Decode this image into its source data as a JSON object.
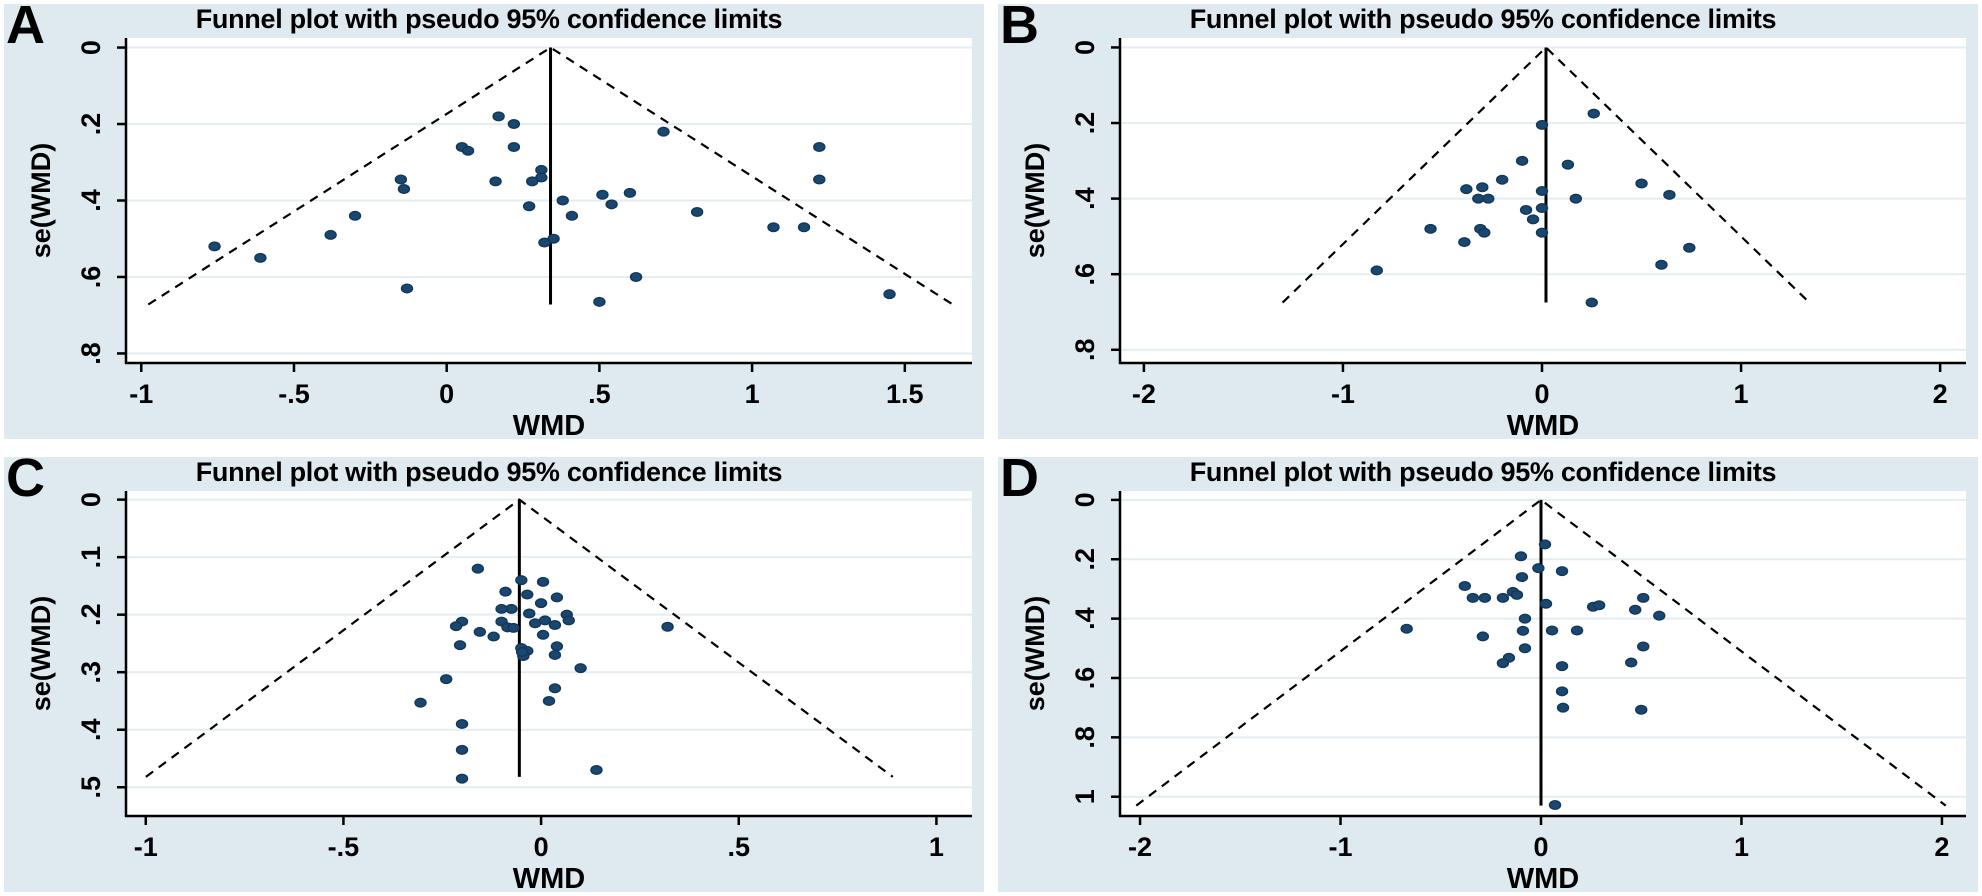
{
  "figure": {
    "description": "Four Stata-style funnel plots arranged in a 2x2 grid, labelled A-D",
    "panel_title": "Funnel plot with pseudo 95% confidence limits"
  },
  "style": {
    "panel_bg": "#dfe9f0",
    "plot_bg": "#ffffff",
    "grid": "#e4edf1",
    "axis": "#000000",
    "line": "#000000",
    "marker": "#1a476f",
    "marker_edge": "#133758"
  },
  "chart_data": [
    {
      "type": "scatter",
      "subtype": "funnel",
      "panel_label": "A",
      "title": "Funnel plot with pseudo 95% confidence limits",
      "xlabel": "WMD",
      "ylabel": "se(WMD)",
      "x_ticks": [
        -1,
        -0.5,
        0,
        0.5,
        1,
        1.5
      ],
      "x_tick_labels": [
        "-1",
        "-.5",
        "0",
        ".5",
        "1",
        "1.5"
      ],
      "y_ticks": [
        0,
        0.2,
        0.4,
        0.6,
        0.8
      ],
      "y_tick_labels": [
        "0",
        ".2",
        ".4",
        ".6",
        ".8"
      ],
      "xlim": [
        -1.05,
        1.72
      ],
      "ylim": [
        -0.025,
        0.825
      ],
      "grid": true,
      "pooled_estimate": 0.34,
      "base_se": 0.672,
      "points": [
        [
          0.17,
          0.18
        ],
        [
          0.22,
          0.2
        ],
        [
          0.22,
          0.26
        ],
        [
          0.05,
          0.26
        ],
        [
          0.07,
          0.27
        ],
        [
          0.31,
          0.32
        ],
        [
          0.31,
          0.34
        ],
        [
          0.28,
          0.35
        ],
        [
          0.16,
          0.35
        ],
        [
          -0.15,
          0.345
        ],
        [
          -0.14,
          0.37
        ],
        [
          0.71,
          0.22
        ],
        [
          1.22,
          0.26
        ],
        [
          1.22,
          0.345
        ],
        [
          0.51,
          0.385
        ],
        [
          0.6,
          0.38
        ],
        [
          0.38,
          0.4
        ],
        [
          0.54,
          0.41
        ],
        [
          0.27,
          0.415
        ],
        [
          0.41,
          0.44
        ],
        [
          0.82,
          0.43
        ],
        [
          -0.3,
          0.44
        ],
        [
          1.07,
          0.47
        ],
        [
          1.17,
          0.47
        ],
        [
          -0.38,
          0.49
        ],
        [
          0.35,
          0.5
        ],
        [
          0.32,
          0.51
        ],
        [
          -0.76,
          0.52
        ],
        [
          -0.61,
          0.55
        ],
        [
          0.62,
          0.6
        ],
        [
          -0.13,
          0.63
        ],
        [
          1.45,
          0.645
        ],
        [
          0.5,
          0.665
        ]
      ]
    },
    {
      "type": "scatter",
      "subtype": "funnel",
      "panel_label": "B",
      "title": "Funnel plot with pseudo 95% confidence limits",
      "xlabel": "WMD",
      "ylabel": "se(WMD)",
      "x_ticks": [
        -2,
        -1,
        0,
        1,
        2
      ],
      "x_tick_labels": [
        "-2",
        "-1",
        "0",
        "1",
        "2"
      ],
      "y_ticks": [
        0,
        0.2,
        0.4,
        0.6,
        0.8
      ],
      "y_tick_labels": [
        "0",
        ".2",
        ".4",
        ".6",
        ".8"
      ],
      "xlim": [
        -2.12,
        2.13
      ],
      "ylim": [
        -0.025,
        0.835
      ],
      "grid": true,
      "pooled_estimate": 0.02,
      "base_se": 0.675,
      "points": [
        [
          0.26,
          0.175
        ],
        [
          0.0,
          0.205
        ],
        [
          -0.1,
          0.3
        ],
        [
          0.13,
          0.31
        ],
        [
          -0.2,
          0.35
        ],
        [
          -0.38,
          0.375
        ],
        [
          -0.3,
          0.37
        ],
        [
          -0.32,
          0.4
        ],
        [
          -0.27,
          0.4
        ],
        [
          0.0,
          0.38
        ],
        [
          0.17,
          0.4
        ],
        [
          0.5,
          0.36
        ],
        [
          0.64,
          0.39
        ],
        [
          -0.08,
          0.43
        ],
        [
          0.0,
          0.425
        ],
        [
          -0.045,
          0.455
        ],
        [
          0.0,
          0.49
        ],
        [
          -0.56,
          0.48
        ],
        [
          -0.31,
          0.48
        ],
        [
          -0.29,
          0.49
        ],
        [
          -0.39,
          0.515
        ],
        [
          -0.83,
          0.59
        ],
        [
          0.74,
          0.53
        ],
        [
          0.6,
          0.575
        ],
        [
          0.25,
          0.675
        ]
      ]
    },
    {
      "type": "scatter",
      "subtype": "funnel",
      "panel_label": "C",
      "title": "Funnel plot with pseudo 95% confidence limits",
      "xlabel": "WMD",
      "ylabel": "se(WMD)",
      "x_ticks": [
        -1,
        -0.5,
        0,
        0.5,
        1
      ],
      "x_tick_labels": [
        "-1",
        "-.5",
        "0",
        ".5",
        "1"
      ],
      "y_ticks": [
        0,
        0.1,
        0.2,
        0.3,
        0.4,
        0.5
      ],
      "y_tick_labels": [
        "0",
        ".1",
        ".2",
        ".3",
        ".4",
        ".5"
      ],
      "xlim": [
        -1.05,
        1.09
      ],
      "ylim": [
        -0.015,
        0.55
      ],
      "grid": true,
      "pooled_estimate": -0.055,
      "base_se": 0.482,
      "points": [
        [
          -0.16,
          0.12
        ],
        [
          -0.05,
          0.14
        ],
        [
          0.005,
          0.143
        ],
        [
          -0.09,
          0.16
        ],
        [
          -0.035,
          0.165
        ],
        [
          0.04,
          0.17
        ],
        [
          0.0,
          0.18
        ],
        [
          -0.075,
          0.19
        ],
        [
          -0.1,
          0.19
        ],
        [
          -0.03,
          0.198
        ],
        [
          0.065,
          0.2
        ],
        [
          -0.2,
          0.212
        ],
        [
          -0.215,
          0.22
        ],
        [
          -0.1,
          0.212
        ],
        [
          -0.085,
          0.222
        ],
        [
          -0.07,
          0.223
        ],
        [
          -0.015,
          0.215
        ],
        [
          0.01,
          0.21
        ],
        [
          0.035,
          0.218
        ],
        [
          0.005,
          0.235
        ],
        [
          -0.155,
          0.23
        ],
        [
          -0.12,
          0.238
        ],
        [
          -0.205,
          0.253
        ],
        [
          -0.05,
          0.258
        ],
        [
          -0.035,
          0.263
        ],
        [
          0.04,
          0.255
        ],
        [
          0.035,
          0.27
        ],
        [
          0.07,
          0.21
        ],
        [
          0.32,
          0.221
        ],
        [
          -0.24,
          0.312
        ],
        [
          0.035,
          0.328
        ],
        [
          -0.305,
          0.353
        ],
        [
          0.02,
          0.35
        ],
        [
          0.1,
          0.293
        ],
        [
          -0.045,
          0.272
        ],
        [
          -0.048,
          0.265
        ],
        [
          -0.2,
          0.39
        ],
        [
          -0.2,
          0.435
        ],
        [
          0.14,
          0.47
        ],
        [
          -0.2,
          0.485
        ]
      ]
    },
    {
      "type": "scatter",
      "subtype": "funnel",
      "panel_label": "D",
      "title": "Funnel plot with pseudo 95% confidence limits",
      "xlabel": "WMD",
      "ylabel": "se(WMD)",
      "x_ticks": [
        -2,
        -1,
        0,
        1,
        2
      ],
      "x_tick_labels": [
        "-2",
        "-1",
        "0",
        "1",
        "2"
      ],
      "y_ticks": [
        0,
        0.2,
        0.4,
        0.6,
        0.8,
        1
      ],
      "y_tick_labels": [
        "0",
        ".2",
        ".4",
        ".6",
        ".8",
        "1"
      ],
      "xlim": [
        -2.1,
        2.12
      ],
      "ylim": [
        -0.03,
        1.065
      ],
      "grid": true,
      "pooled_estimate": 0.0,
      "base_se": 1.03,
      "points": [
        [
          0.02,
          0.15
        ],
        [
          -0.1,
          0.19
        ],
        [
          -0.013,
          0.23
        ],
        [
          0.105,
          0.24
        ],
        [
          -0.095,
          0.26
        ],
        [
          -0.38,
          0.29
        ],
        [
          -0.14,
          0.31
        ],
        [
          -0.34,
          0.33
        ],
        [
          -0.28,
          0.33
        ],
        [
          -0.19,
          0.33
        ],
        [
          -0.12,
          0.32
        ],
        [
          0.51,
          0.33
        ],
        [
          0.025,
          0.35
        ],
        [
          0.26,
          0.36
        ],
        [
          0.29,
          0.355
        ],
        [
          0.47,
          0.37
        ],
        [
          0.59,
          0.39
        ],
        [
          -0.08,
          0.4
        ],
        [
          -0.67,
          0.434
        ],
        [
          -0.09,
          0.441
        ],
        [
          0.055,
          0.44
        ],
        [
          0.18,
          0.44
        ],
        [
          -0.29,
          0.46
        ],
        [
          -0.08,
          0.5
        ],
        [
          0.51,
          0.494
        ],
        [
          -0.16,
          0.532
        ],
        [
          -0.19,
          0.55
        ],
        [
          0.45,
          0.548
        ],
        [
          0.105,
          0.56
        ],
        [
          0.105,
          0.645
        ],
        [
          0.11,
          0.7
        ],
        [
          0.5,
          0.707
        ],
        [
          0.07,
          1.028
        ]
      ]
    }
  ]
}
